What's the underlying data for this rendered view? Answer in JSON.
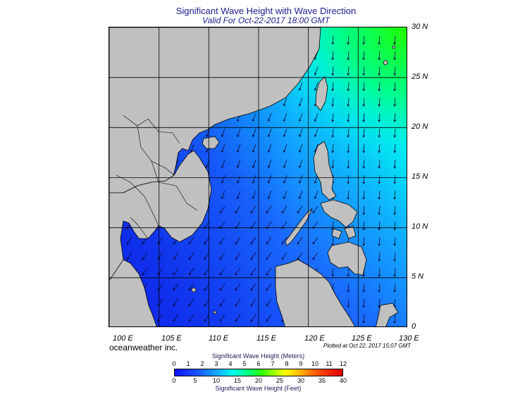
{
  "header": {
    "title": "Significant Wave Height with Wave Direction",
    "subtitle": "Valid For Oct-22-2017 18:00 GMT"
  },
  "map": {
    "lat_labels": [
      "30 N",
      "25 N",
      "20 N",
      "15 N",
      "10 N",
      "5 N",
      "0"
    ],
    "lon_labels": [
      "100 E",
      "105 E",
      "110 E",
      "115 E",
      "120 E",
      "125 E",
      "130 E"
    ],
    "land_color": "#c0c0c0",
    "sea_low_color": "#1a3cf0",
    "sea_high_color": "#00ff20"
  },
  "footer": {
    "credit": "oceanweather inc.",
    "plotted": "Plotted at Oct 22, 2017 15:07 GMT"
  },
  "colorbar": {
    "title_meters": "Significant Wave Height (Meters)",
    "title_feet": "Significant Wave Height (Feet)",
    "meters_ticks": [
      "0",
      "1",
      "2",
      "3",
      "4",
      "5",
      "6",
      "7",
      "8",
      "9",
      "10",
      "11",
      "12"
    ],
    "feet_ticks": [
      "0",
      "5",
      "10",
      "15",
      "20",
      "25",
      "30",
      "35",
      "40"
    ]
  }
}
